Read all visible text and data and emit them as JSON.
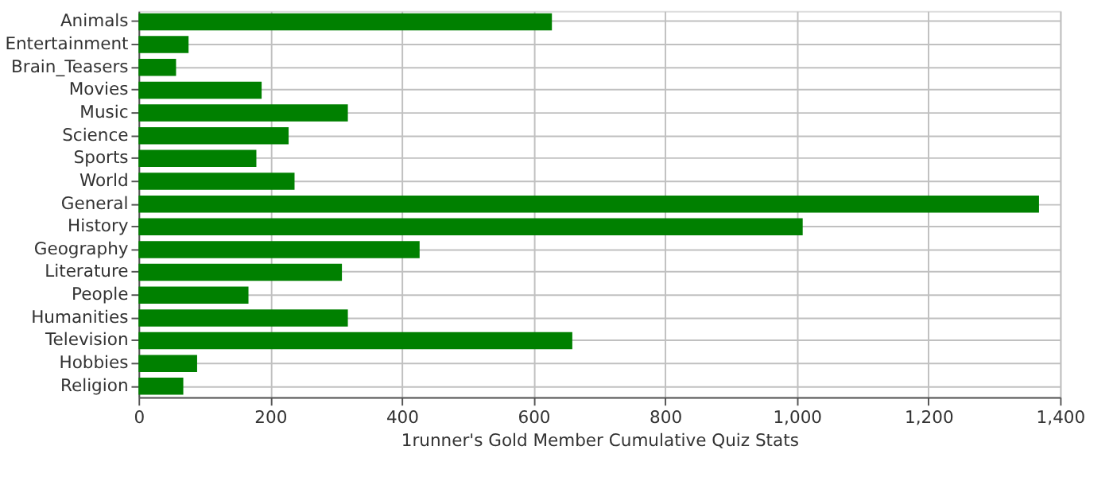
{
  "chart_data": {
    "type": "bar",
    "orientation": "horizontal",
    "xlabel": "1runner's Gold Member Cumulative Quiz Stats",
    "categories": [
      "Animals",
      "Entertainment",
      "Brain_Teasers",
      "Movies",
      "Music",
      "Science",
      "Sports",
      "World",
      "General",
      "History",
      "Geography",
      "Literature",
      "People",
      "Humanities",
      "Television",
      "Hobbies",
      "Religion"
    ],
    "values": [
      628,
      76,
      57,
      187,
      318,
      228,
      179,
      237,
      1368,
      1009,
      427,
      309,
      167,
      318,
      659,
      89,
      68
    ],
    "color": "#008000",
    "xlim": [
      0,
      1400
    ],
    "xticks": [
      0,
      200,
      400,
      600,
      800,
      {
        "value": 1000,
        "label": "1,000"
      },
      {
        "value": 1200,
        "label": "1,200"
      },
      {
        "value": 1400,
        "label": "1,400"
      }
    ],
    "grid": true
  }
}
